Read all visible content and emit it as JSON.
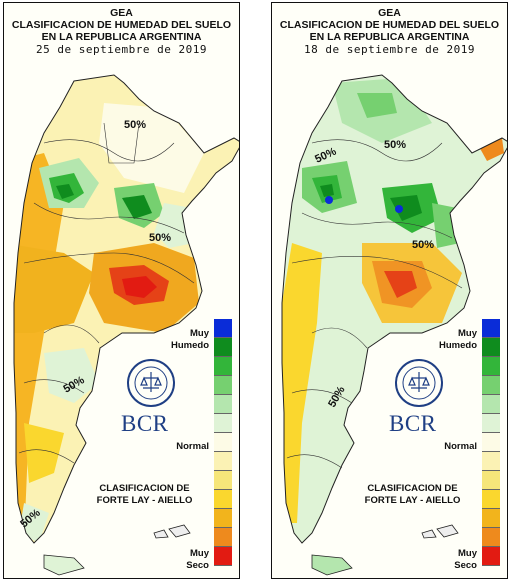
{
  "panels": [
    {
      "org": "GEA",
      "title_line1": "CLASIFICACION DE HUMEDAD DEL SUELO",
      "title_line2": "EN LA REPUBLICA ARGENTINA",
      "date": "25 de septiembre de 2019",
      "contour_labels": [
        "50%",
        "50%",
        "50%",
        "50%"
      ]
    },
    {
      "org": "GEA",
      "title_line1": "CLASIFICACION DE HUMEDAD DEL SUELO",
      "title_line2": "EN LA REPUBLICA ARGENTINA",
      "date": "18 de septiembre de 2019",
      "contour_labels": [
        "50%",
        "50%",
        "50%",
        "50%"
      ]
    }
  ],
  "legend": {
    "top_label_1": "Muy",
    "top_label_2": "Humedo",
    "mid_label": "Normal",
    "bottom_label_1": "Muy",
    "bottom_label_2": "Seco",
    "classes": [
      "#0a2cd8",
      "#0f8c1e",
      "#33b53a",
      "#76d070",
      "#b4e6ae",
      "#dff3d6",
      "#fdfbe6",
      "#fbf2b4",
      "#f6e67a",
      "#fad72e",
      "#f2b41c",
      "#ee8a1d",
      "#e21b12"
    ]
  },
  "credits": {
    "line1": "CLASIFICACION DE",
    "line2": "FORTE LAY - AIELLO"
  },
  "logo": {
    "text": "BCR",
    "seal_text": "BOLSA DE COMERCIO DE ROSARIO",
    "color": "#1f3f84"
  }
}
